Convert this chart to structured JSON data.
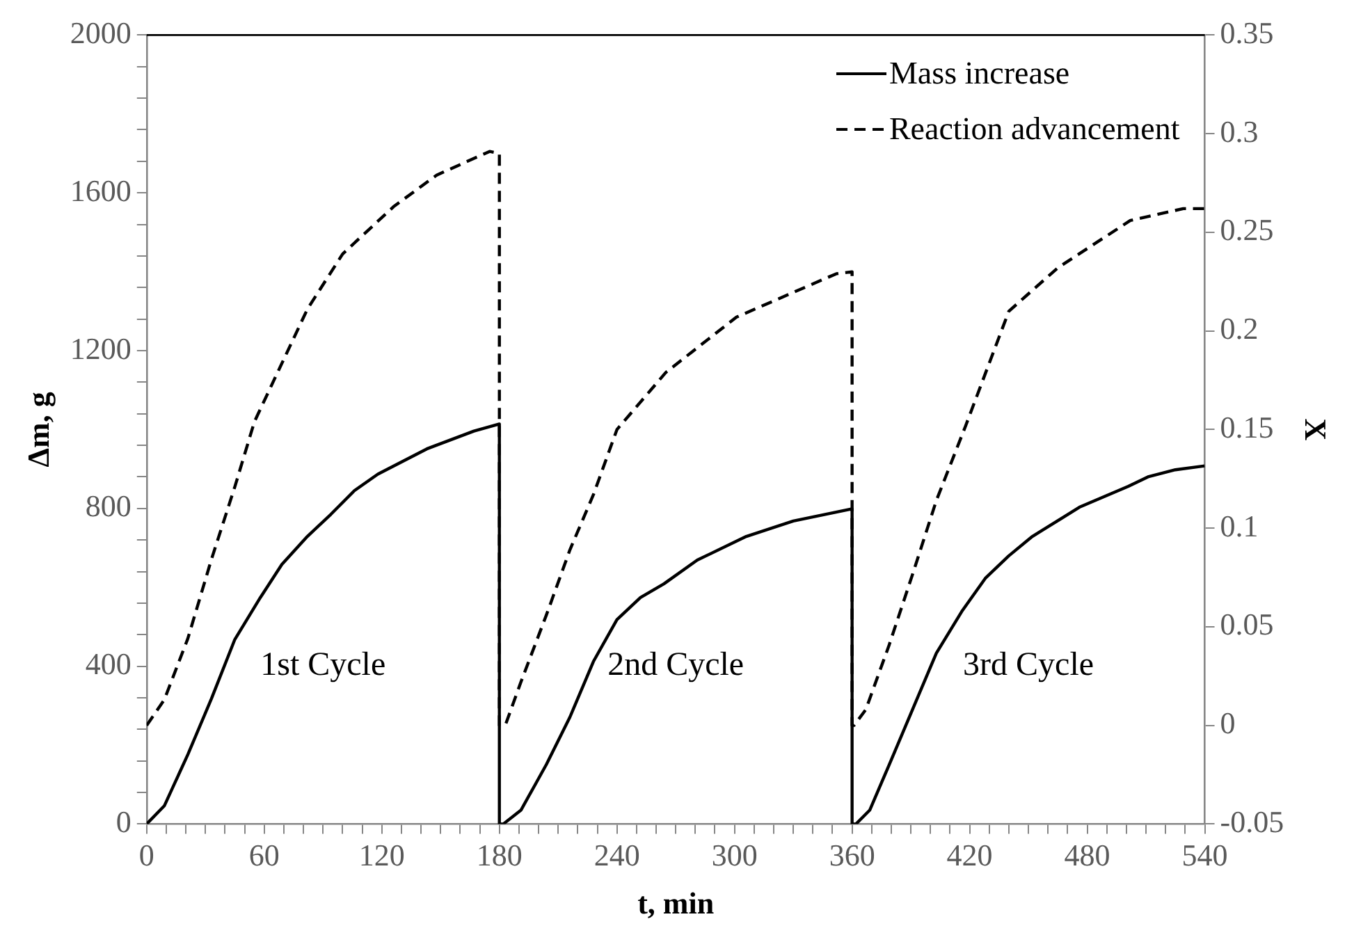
{
  "chart_data": {
    "type": "line",
    "xlabel": "t, min",
    "ylabel": "Δm, g",
    "y2label": "X",
    "xlim": [
      0,
      540
    ],
    "xticks": [
      0,
      {
        "value": 10,
        "label": null
      },
      {
        "value": 20,
        "label": null
      },
      {
        "value": 30,
        "label": null
      },
      {
        "value": 40,
        "label": null
      },
      {
        "value": 50,
        "label": null
      },
      60,
      {
        "value": 70,
        "label": null
      },
      {
        "value": 80,
        "label": null
      },
      {
        "value": 90,
        "label": null
      },
      {
        "value": 100,
        "label": null
      },
      {
        "value": 110,
        "label": null
      },
      120,
      {
        "value": 130,
        "label": null
      },
      {
        "value": 140,
        "label": null
      },
      {
        "value": 150,
        "label": null
      },
      {
        "value": 160,
        "label": null
      },
      {
        "value": 170,
        "label": null
      },
      180,
      {
        "value": 190,
        "label": null
      },
      {
        "value": 200,
        "label": null
      },
      {
        "value": 210,
        "label": null
      },
      {
        "value": 220,
        "label": null
      },
      {
        "value": 230,
        "label": null
      },
      240,
      {
        "value": 250,
        "label": null
      },
      {
        "value": 260,
        "label": null
      },
      {
        "value": 270,
        "label": null
      },
      {
        "value": 280,
        "label": null
      },
      {
        "value": 290,
        "label": null
      },
      300,
      {
        "value": 310,
        "label": null
      },
      {
        "value": 320,
        "label": null
      },
      {
        "value": 330,
        "label": null
      },
      {
        "value": 340,
        "label": null
      },
      {
        "value": 350,
        "label": null
      },
      360,
      {
        "value": 370,
        "label": null
      },
      {
        "value": 380,
        "label": null
      },
      {
        "value": 390,
        "label": null
      },
      {
        "value": 400,
        "label": null
      },
      {
        "value": 410,
        "label": null
      },
      420,
      {
        "value": 430,
        "label": null
      },
      {
        "value": 440,
        "label": null
      },
      {
        "value": 450,
        "label": null
      },
      {
        "value": 460,
        "label": null
      },
      {
        "value": 470,
        "label": null
      },
      480,
      {
        "value": 490,
        "label": null
      },
      {
        "value": 500,
        "label": null
      },
      {
        "value": 510,
        "label": null
      },
      {
        "value": 520,
        "label": null
      },
      {
        "value": 530,
        "label": null
      },
      540
    ],
    "ylim": [
      0,
      2000
    ],
    "yticks": [
      0,
      {
        "value": 80,
        "label": null
      },
      {
        "value": 160,
        "label": null
      },
      {
        "value": 240,
        "label": null
      },
      {
        "value": 320,
        "label": null
      },
      400,
      {
        "value": 480,
        "label": null
      },
      {
        "value": 560,
        "label": null
      },
      {
        "value": 640,
        "label": null
      },
      {
        "value": 720,
        "label": null
      },
      800,
      {
        "value": 880,
        "label": null
      },
      {
        "value": 960,
        "label": null
      },
      {
        "value": 1040,
        "label": null
      },
      {
        "value": 1120,
        "label": null
      },
      1200,
      {
        "value": 1280,
        "label": null
      },
      {
        "value": 1360,
        "label": null
      },
      {
        "value": 1440,
        "label": null
      },
      {
        "value": 1520,
        "label": null
      },
      1600,
      {
        "value": 1680,
        "label": null
      },
      {
        "value": 1760,
        "label": null
      },
      {
        "value": 1840,
        "label": null
      },
      {
        "value": 1920,
        "label": null
      },
      2000
    ],
    "y2lim": [
      -0.05,
      0.35
    ],
    "y2ticks": [
      -0.05,
      0,
      0.05,
      0.1,
      0.15,
      0.2,
      0.25,
      0.3,
      0.35
    ],
    "grid": false,
    "legend": "top right",
    "marker": "none",
    "series": [
      {
        "name": "Mass increase",
        "color": "#000000",
        "line_style": "solid",
        "x": [
          0,
          9,
          21,
          33,
          45,
          58,
          69,
          82,
          94,
          106,
          118,
          143,
          167,
          180,
          180,
          182,
          191,
          204,
          216,
          228,
          240,
          252,
          264,
          281,
          306,
          330,
          360,
          360,
          362,
          369,
          379,
          391,
          403,
          416,
          428,
          440,
          452,
          476,
          501,
          511,
          525,
          540
        ],
        "values": [
          0,
          46,
          176,
          317,
          468,
          574,
          658,
          729,
          785,
          845,
          887,
          951,
          996,
          1014,
          0,
          0,
          35,
          151,
          271,
          412,
          518,
          574,
          609,
          669,
          729,
          768,
          799,
          0,
          0,
          35,
          151,
          292,
          433,
          539,
          623,
          680,
          729,
          803,
          856,
          880,
          898,
          908
        ]
      },
      {
        "name": "Reaction advancement",
        "color": "#000000",
        "line_style": "dashed",
        "axis": "y2",
        "x": [
          0,
          9,
          21,
          33,
          45,
          55,
          82,
          100,
          126,
          148,
          175,
          180,
          180,
          183,
          191,
          204,
          216,
          228,
          240,
          265,
          301,
          338,
          352,
          360,
          360,
          361,
          367,
          379,
          391,
          403,
          418,
          440,
          465,
          502,
          529,
          540
        ],
        "values": [
          0,
          0.013,
          0.044,
          0.084,
          0.121,
          0.154,
          0.211,
          0.239,
          0.263,
          0.279,
          0.291,
          0.29,
          0,
          0,
          0.022,
          0.056,
          0.089,
          0.117,
          0.15,
          0.179,
          0.207,
          0.223,
          0.229,
          0.23,
          0,
          0,
          0.008,
          0.041,
          0.077,
          0.114,
          0.152,
          0.21,
          0.232,
          0.256,
          0.262,
          0.262
        ]
      }
    ],
    "annotations": [
      "1st Cycle",
      "2nd Cycle",
      "3rd Cycle"
    ]
  }
}
